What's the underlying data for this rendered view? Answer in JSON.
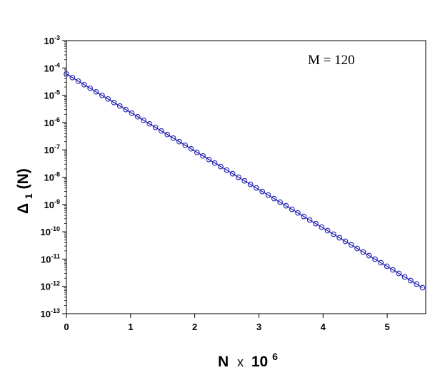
{
  "chart_data": {
    "type": "scatter",
    "title": "",
    "annotation": "M = 120",
    "xlabel": {
      "base": "N",
      "times": "x",
      "power_base": "10",
      "exponent": "6"
    },
    "ylabel": {
      "symbol": "Δ",
      "subscript": "1",
      "arg": "(N)"
    },
    "x_ticks": [
      "0",
      "1",
      "2",
      "3",
      "4",
      "5"
    ],
    "y_ticks": [
      {
        "base": "10",
        "exp": "-3"
      },
      {
        "base": "10",
        "exp": "-4"
      },
      {
        "base": "10",
        "exp": "-5"
      },
      {
        "base": "10",
        "exp": "-6"
      },
      {
        "base": "10",
        "exp": "-7"
      },
      {
        "base": "10",
        "exp": "-8"
      },
      {
        "base": "10",
        "exp": "-9"
      },
      {
        "base": "10",
        "exp": "-10"
      },
      {
        "base": "10",
        "exp": "-11"
      },
      {
        "base": "10",
        "exp": "-12"
      },
      {
        "base": "10",
        "exp": "-13"
      }
    ],
    "xlim": [
      0,
      5.6
    ],
    "ylim": [
      1e-13,
      0.001
    ],
    "yscale": "log",
    "grid": false,
    "series": [
      {
        "color": "#1f1fb0",
        "marker": "open-circle",
        "line": true,
        "x": [
          0,
          5.55
        ],
        "y": [
          6e-05,
          9e-13
        ]
      }
    ]
  }
}
